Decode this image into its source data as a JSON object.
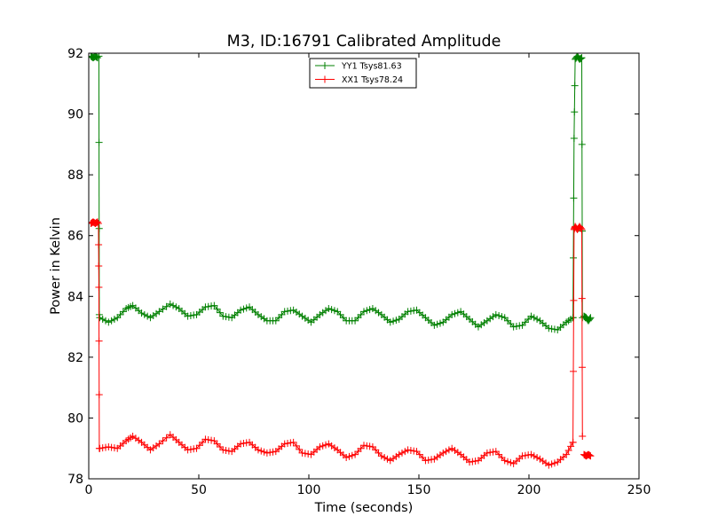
{
  "chart_data": {
    "type": "line",
    "title": "M3, ID:16791 Calibrated Amplitude",
    "xlabel": "Time (seconds)",
    "ylabel": "Power in Kelvin",
    "xlim": [
      0,
      250
    ],
    "ylim": [
      78,
      92
    ],
    "x_ticks": [
      "0",
      "50",
      "100",
      "150",
      "200",
      "250"
    ],
    "y_ticks": [
      "78",
      "80",
      "82",
      "84",
      "86",
      "88",
      "90",
      "92"
    ],
    "grid": false,
    "legend_position": "top-center",
    "series": [
      {
        "name": "YY1 Tsys81.63",
        "color": "#008000",
        "marker": "+",
        "segments": [
          {
            "x": [
              1,
              2,
              3,
              4
            ],
            "y": [
              91.9,
              91.85,
              91.9,
              91.85
            ]
          },
          {
            "x": [
              4.6,
              4.8
            ],
            "y": [
              91.9,
              83.4
            ]
          },
          {
            "x": [
              5,
              9,
              13,
              17,
              20,
              24,
              28,
              32,
              37,
              41,
              45,
              49,
              53,
              57,
              61,
              65,
              69,
              73,
              77,
              81,
              85,
              89,
              93,
              97,
              101,
              105,
              109,
              113,
              117,
              121,
              125,
              129,
              133,
              137,
              141,
              145,
              149,
              153,
              157,
              161,
              165,
              169,
              173,
              177,
              181,
              185,
              189,
              193,
              197,
              201,
              205,
              209,
              213,
              217,
              220
            ],
            "y": [
              83.3,
              83.15,
              83.3,
              83.6,
              83.7,
              83.45,
              83.3,
              83.5,
              83.75,
              83.6,
              83.35,
              83.4,
              83.65,
              83.7,
              83.35,
              83.3,
              83.55,
              83.65,
              83.4,
              83.2,
              83.2,
              83.5,
              83.55,
              83.35,
              83.15,
              83.4,
              83.6,
              83.5,
              83.2,
              83.2,
              83.5,
              83.6,
              83.4,
              83.15,
              83.25,
              83.5,
              83.55,
              83.3,
              83.05,
              83.15,
              83.4,
              83.5,
              83.25,
              83.0,
              83.2,
              83.4,
              83.3,
              83.0,
              83.05,
              83.35,
              83.2,
              82.95,
              82.9,
              83.15,
              83.3
            ]
          },
          {
            "x": [
              220,
              220.5,
              221,
              222,
              223,
              224,
              224.3
            ],
            "y": [
              83.3,
              89.2,
              91.8,
              91.9,
              91.8,
              91.85,
              83.3
            ]
          },
          {
            "x": [
              225,
              226,
              227,
              228
            ],
            "y": [
              83.35,
              83.3,
              83.2,
              83.3
            ]
          }
        ]
      },
      {
        "name": "XX1 Tsys78.24",
        "color": "#ff0000",
        "marker": "+",
        "segments": [
          {
            "x": [
              1,
              2,
              3,
              4
            ],
            "y": [
              86.4,
              86.45,
              86.4,
              86.45
            ]
          },
          {
            "x": [
              4.4,
              4.6,
              4.8
            ],
            "y": [
              86.4,
              84.3,
              79.0
            ]
          },
          {
            "x": [
              5,
              9,
              13,
              17,
              20,
              24,
              28,
              32,
              37,
              41,
              45,
              49,
              53,
              57,
              61,
              65,
              69,
              73,
              77,
              81,
              85,
              89,
              93,
              97,
              101,
              105,
              109,
              113,
              117,
              121,
              125,
              129,
              133,
              137,
              141,
              145,
              149,
              153,
              157,
              161,
              165,
              169,
              173,
              177,
              181,
              185,
              189,
              193,
              197,
              201,
              205,
              209,
              213,
              217,
              220
            ],
            "y": [
              79.0,
              79.05,
              79.0,
              79.25,
              79.4,
              79.2,
              78.95,
              79.15,
              79.45,
              79.2,
              78.95,
              79.0,
              79.3,
              79.25,
              78.95,
              78.9,
              79.15,
              79.2,
              78.95,
              78.85,
              78.9,
              79.15,
              79.2,
              78.85,
              78.8,
              79.05,
              79.15,
              78.95,
              78.7,
              78.8,
              79.1,
              79.05,
              78.75,
              78.6,
              78.8,
              78.95,
              78.9,
              78.6,
              78.65,
              78.85,
              79.0,
              78.8,
              78.55,
              78.6,
              78.85,
              78.9,
              78.6,
              78.5,
              78.75,
              78.8,
              78.65,
              78.45,
              78.55,
              78.8,
              79.2
            ]
          },
          {
            "x": [
              220,
              220.5,
              221,
              222,
              223,
              224,
              224.3
            ],
            "y": [
              79.2,
              86.2,
              86.3,
              86.2,
              86.3,
              86.2,
              79.4
            ]
          },
          {
            "x": [
              225,
              226,
              227,
              228
            ],
            "y": [
              78.8,
              78.75,
              78.8,
              78.75
            ]
          }
        ]
      }
    ]
  }
}
